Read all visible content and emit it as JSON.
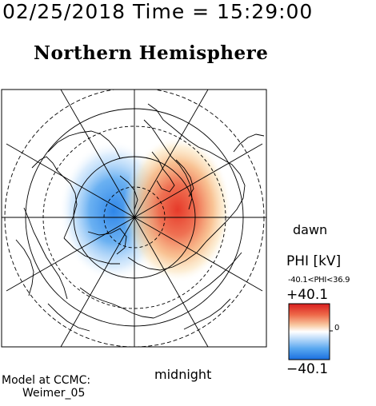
{
  "header": {
    "datetime": "02/25/2018 Time = 15:29:00"
  },
  "plot": {
    "title": "Northern Hemisphere",
    "label_dawn": "dawn",
    "label_midnight": "midnight",
    "colors": {
      "positive": "#e63a2a",
      "negative": "#2f86e8"
    }
  },
  "colorbar": {
    "label": "PHI [kV]",
    "range_text": "-40.1<PHI<36.9",
    "max_label": "+40.1",
    "min_label": "−40.1",
    "zero_label": "0",
    "max": 40.1,
    "min": -40.1
  },
  "credit": {
    "line1": "Model at CCMC:",
    "line2": "Weimer_05"
  }
}
